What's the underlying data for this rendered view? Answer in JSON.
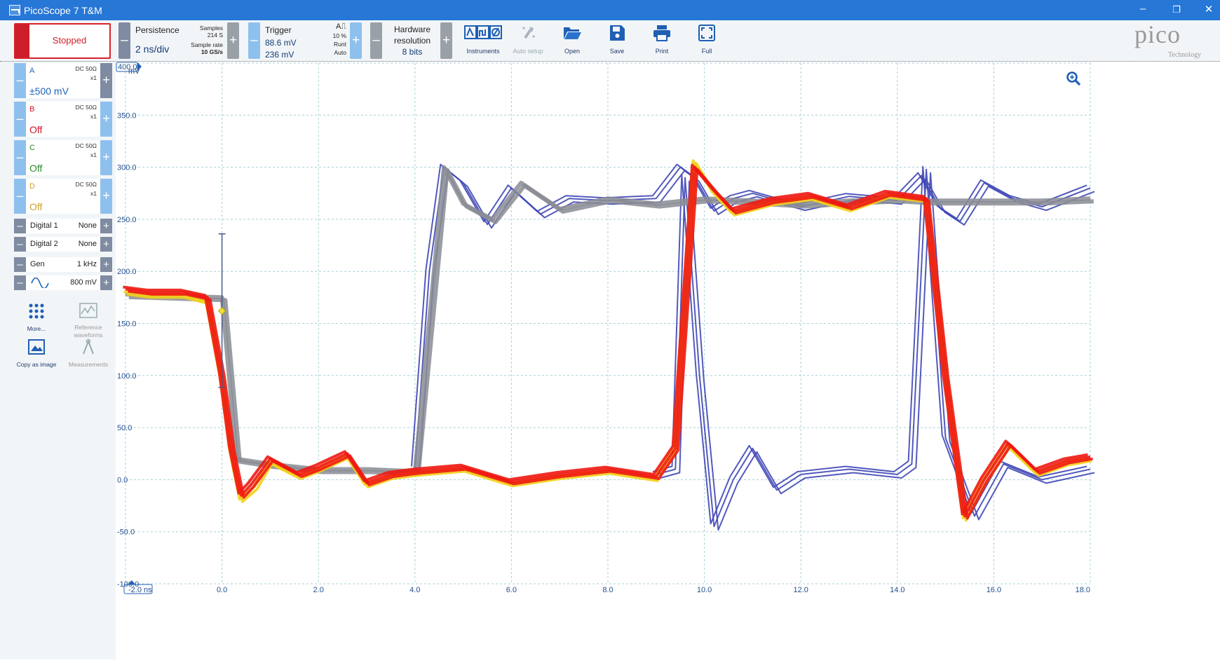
{
  "window": {
    "title": "PicoScope 7 T&M",
    "minimize": "–",
    "restore": "❐",
    "close": "✕"
  },
  "toolbar": {
    "run_state": "Stopped",
    "persistence_label": "Persistence",
    "timebase": "2 ns/div",
    "samples_label": "Samples",
    "samples_value": "214 S",
    "sample_rate_label": "Sample rate",
    "sample_rate_value": "10 GS/s",
    "trigger_label": "Trigger",
    "trigger_level": "88.6 mV",
    "trigger_level2": "236 mV",
    "trigger_pct": "10 %",
    "trigger_type": "Runt",
    "trigger_mode": "Auto",
    "hw_res_label1": "Hardware",
    "hw_res_label2": "resolution",
    "hw_res_value": "8 bits",
    "tools": [
      {
        "label": "Instruments",
        "icon": "instruments-icon"
      },
      {
        "label": "Auto setup",
        "icon": "auto-setup-icon"
      },
      {
        "label": "Open",
        "icon": "folder-open-icon"
      },
      {
        "label": "Save",
        "icon": "save-icon"
      },
      {
        "label": "Print",
        "icon": "print-icon"
      },
      {
        "label": "Full",
        "icon": "fullscreen-icon"
      }
    ],
    "logo_word": "pico",
    "logo_sub": "Technology"
  },
  "channels": [
    {
      "name": "A",
      "coupling": "DC 50Ω",
      "probe": "x1",
      "range": "±500 mV",
      "color": "#1f63b5"
    },
    {
      "name": "B",
      "coupling": "DC 50Ω",
      "probe": "x1",
      "range": "Off",
      "color": "#d0142a"
    },
    {
      "name": "C",
      "coupling": "DC 50Ω",
      "probe": "x1",
      "range": "Off",
      "color": "#2f8a2f"
    },
    {
      "name": "D",
      "coupling": "DC 50Ω",
      "probe": "x1",
      "range": "Off",
      "color": "#c9a233"
    }
  ],
  "digital": [
    {
      "name": "Digital 1",
      "value": "None"
    },
    {
      "name": "Digital 2",
      "value": "None"
    }
  ],
  "generator": {
    "name": "Gen",
    "frequency": "1 kHz",
    "amplitude": "800 mV"
  },
  "sidebar_buttons": [
    {
      "label": "More...",
      "icon": "more-dots-icon"
    },
    {
      "label": "Reference waveforms",
      "icon": "reference-waveforms-icon"
    },
    {
      "label": "Copy as image",
      "icon": "copy-image-icon"
    },
    {
      "label": "Measurements",
      "icon": "measurements-icon"
    }
  ],
  "chart_data": {
    "type": "line",
    "ylabel": "mV",
    "xunit": "ns",
    "ylim": [
      -100,
      400
    ],
    "xlim": [
      -2,
      18
    ],
    "yticks": [
      "400.0",
      "350.0",
      "300.0",
      "250.0",
      "200.0",
      "150.0",
      "100.0",
      "50.0",
      "0.0",
      "-50.0",
      "-100.0"
    ],
    "xticks": [
      "-2.0 ns",
      "0.0",
      "2.0",
      "4.0",
      "6.0",
      "8.0",
      "10.0",
      "12.0",
      "14.0",
      "16.0",
      "18.0"
    ],
    "grid": true,
    "persistence": true,
    "trigger_window": {
      "x": 0,
      "upper": 236,
      "lower": 88.6,
      "marker": 162
    },
    "series": [
      {
        "color": "#ee1a12",
        "x": [
          -2,
          -1.5,
          -0.8,
          -0.3,
          0,
          0.2,
          0.4,
          0.6,
          1.0,
          1.6,
          2.0,
          2.6,
          3.0,
          3.5,
          4.0,
          5.0,
          6.0,
          7.0,
          8.0,
          9.0,
          9.4,
          9.8,
          10.2,
          10.6,
          11.4,
          12.2,
          13.0,
          13.8,
          14.6,
          15.0,
          15.4,
          15.8,
          16.3,
          16.9,
          17.5,
          18
        ],
        "y": [
          183,
          180,
          180,
          175,
          100,
          30,
          -15,
          -5,
          20,
          5,
          12,
          25,
          -3,
          5,
          8,
          12,
          -2,
          5,
          10,
          3,
          30,
          300,
          278,
          258,
          268,
          273,
          262,
          275,
          270,
          100,
          -35,
          0,
          35,
          8,
          18,
          22
        ]
      },
      {
        "color": "#f2d21a",
        "x": [
          -2,
          -1.5,
          -0.8,
          -0.3,
          0,
          0.2,
          0.4,
          0.7,
          1.0,
          1.6,
          2.0,
          2.6,
          3.0,
          3.5,
          4.0,
          5.0,
          6.0,
          7.0,
          8.0,
          9.0,
          9.4,
          9.8,
          10.2,
          10.6,
          11.4,
          12.2,
          13.0,
          13.8,
          14.6,
          15.0,
          15.4,
          15.8,
          16.3,
          16.9,
          17.5,
          18
        ],
        "y": [
          179,
          176,
          176,
          170,
          95,
          25,
          -20,
          -8,
          16,
          2,
          9,
          22,
          -6,
          2,
          5,
          9,
          -5,
          2,
          7,
          0,
          30,
          305,
          275,
          255,
          265,
          270,
          259,
          272,
          268,
          100,
          -38,
          -3,
          32,
          5,
          15,
          19
        ]
      },
      {
        "color": "#8a8c94",
        "x": [
          -2,
          0,
          0.3,
          1.0,
          2.0,
          3.0,
          4.0,
          4.6,
          5.0,
          5.6,
          6.2,
          7.0,
          8.0,
          9.0,
          10.0,
          11.0,
          12.0,
          13.0,
          14.0,
          14.7,
          15.0,
          16.0,
          17.0,
          18
        ],
        "y": [
          178,
          175,
          20,
          15,
          10,
          10,
          8,
          300,
          265,
          250,
          285,
          260,
          270,
          265,
          270,
          268,
          265,
          268,
          270,
          268,
          268,
          268,
          268,
          270
        ]
      },
      {
        "color": "#3f47b5",
        "x": [
          4.0,
          4.3,
          4.6,
          5.0,
          5.5,
          6.0,
          6.6,
          7.2,
          8.0,
          9.0,
          9.5,
          9.8,
          10.2,
          10.6,
          11.0,
          12.0,
          13.0,
          14.0,
          14.5,
          14.9,
          15.3,
          15.8,
          16.4,
          17.0,
          18
        ],
        "y": [
          10,
          200,
          300,
          285,
          245,
          280,
          255,
          270,
          268,
          270,
          300,
          290,
          258,
          270,
          275,
          262,
          272,
          268,
          292,
          260,
          248,
          285,
          270,
          262,
          280
        ]
      },
      {
        "color": "#3f47b5",
        "x": [
          9.0,
          9.4,
          9.6,
          9.9,
          10.2,
          10.6,
          11.0,
          11.5,
          12.0,
          13.0,
          14.0,
          14.3,
          14.6,
          15.0,
          15.6,
          16.2,
          17.0,
          18
        ],
        "y": [
          5,
          10,
          290,
          100,
          -45,
          0,
          30,
          -10,
          5,
          10,
          5,
          15,
          298,
          40,
          -35,
          15,
          0,
          10
        ]
      }
    ]
  }
}
